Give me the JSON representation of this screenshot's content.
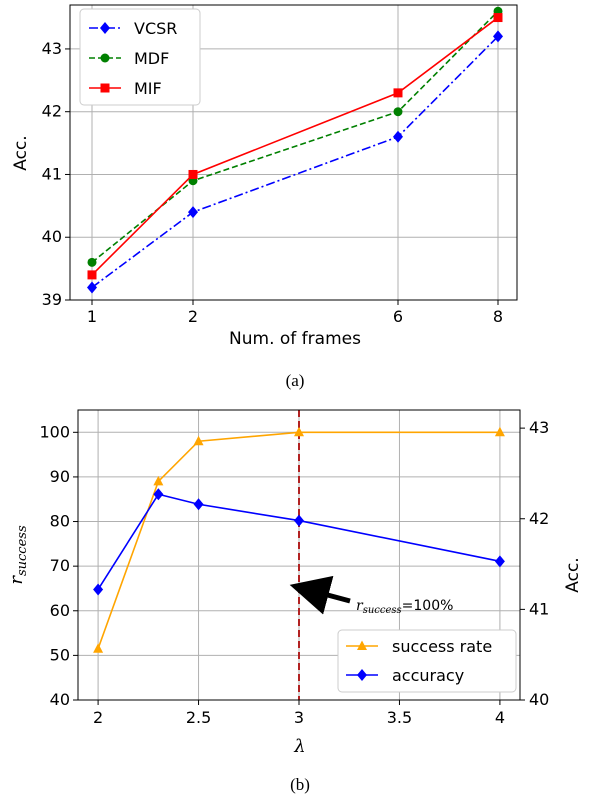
{
  "chart_data": [
    {
      "id": "a",
      "type": "line",
      "caption": "(a)",
      "xlabel": "Num. of frames",
      "ylabel": "Acc.",
      "x_categories": [
        "1",
        "2",
        "6",
        "8"
      ],
      "ylim": [
        39,
        43.7
      ],
      "yticks": [
        "39",
        "40",
        "41",
        "42",
        "43"
      ],
      "grid": true,
      "legend_position": "top-left",
      "series": [
        {
          "name": "VCSR",
          "color": "#0000ff",
          "marker": "diamond",
          "linestyle": "dashdot",
          "values": [
            39.2,
            40.4,
            41.6,
            43.2
          ]
        },
        {
          "name": "MDF",
          "color": "#008000",
          "marker": "circle",
          "linestyle": "dashed",
          "values": [
            39.6,
            40.9,
            42.0,
            43.6
          ]
        },
        {
          "name": "MIF",
          "color": "#ff0000",
          "marker": "square",
          "linestyle": "solid",
          "values": [
            39.4,
            41.0,
            42.3,
            43.5
          ]
        }
      ]
    },
    {
      "id": "b",
      "type": "line",
      "caption": "(b)",
      "xlabel": "λ",
      "ylabel_left_main": "r",
      "ylabel_left_sub": "success",
      "ylabel_right": "Acc.",
      "xlim": [
        1.9,
        4.1
      ],
      "xticks": [
        "2",
        "2.5",
        "3",
        "3.5",
        "4"
      ],
      "ylim_left": [
        40,
        105
      ],
      "yticks_left": [
        "40",
        "50",
        "60",
        "70",
        "80",
        "90",
        "100"
      ],
      "ylim_right": [
        40,
        43.2
      ],
      "yticks_right": [
        "40",
        "41",
        "42",
        "43"
      ],
      "grid": true,
      "legend_position": "lower-right",
      "vline_x": 3,
      "annotation": {
        "main": "r",
        "sub": "success",
        "suffix": "=100%"
      },
      "series": [
        {
          "name": "success rate",
          "axis": "left",
          "color": "#ffa500",
          "marker": "triangle",
          "x": [
            2,
            2.3,
            2.5,
            3,
            4
          ],
          "values": [
            51.5,
            89,
            98,
            100,
            100
          ]
        },
        {
          "name": "accuracy",
          "axis": "right",
          "color": "#0000ff",
          "marker": "diamond",
          "x": [
            2,
            2.3,
            2.5,
            3,
            4
          ],
          "values": [
            41.22,
            42.27,
            42.16,
            41.98,
            41.53
          ]
        }
      ]
    }
  ]
}
